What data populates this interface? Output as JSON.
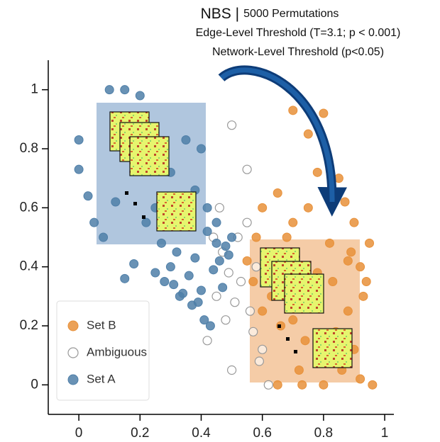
{
  "chart_data": {
    "type": "scatter",
    "title": "NBS |",
    "subtitle": "5000 Permutations",
    "annotations": [
      "Edge-Level Threshold (T=3.1; p < 0.001)",
      "Network-Level Threshold (p<0.05)"
    ],
    "xlim": [
      -0.1,
      1.03
    ],
    "ylim": [
      -0.1,
      1.1
    ],
    "xticks": [
      0,
      0.2,
      0.4,
      0.6,
      0.8,
      1
    ],
    "yticks": [
      0,
      0.2,
      0.4,
      0.6,
      0.8,
      1
    ],
    "legend": "lower left",
    "series": [
      {
        "name": "Set B",
        "color": "#e8913a",
        "fill": true,
        "x": [
          0.6,
          0.65,
          0.7,
          0.75,
          0.8,
          0.85,
          0.9,
          0.95,
          0.62,
          0.68,
          0.72,
          0.78,
          0.83,
          0.88,
          0.93,
          0.6,
          0.66,
          0.74,
          0.8,
          0.86,
          0.92,
          0.57,
          0.63,
          0.7,
          0.77,
          0.84,
          0.9,
          0.96,
          0.65,
          0.72,
          0.8,
          0.88,
          0.94,
          0.75,
          0.82,
          0.89,
          0.7,
          0.78,
          0.87,
          0.92,
          0.73,
          0.58,
          0.55
        ],
        "values": [
          0.6,
          0.65,
          0.93,
          0.85,
          0.92,
          0.7,
          0.55,
          0.48,
          0.45,
          0.5,
          0.4,
          0.38,
          0.35,
          0.42,
          0.3,
          0.25,
          0.2,
          0.15,
          0.1,
          0.05,
          0.02,
          0.35,
          0.3,
          0.22,
          0.28,
          0.18,
          0.12,
          0.0,
          0.0,
          0.05,
          0.0,
          0.25,
          0.35,
          0.6,
          0.48,
          0.45,
          0.55,
          0.72,
          0.62,
          0.4,
          0.0,
          0.5,
          0.42
        ]
      },
      {
        "name": "Ambiguous",
        "color": "#999999",
        "fill": false,
        "x": [
          0.5,
          0.55,
          0.45,
          0.48,
          0.52,
          0.58,
          0.42,
          0.47,
          0.53,
          0.56,
          0.6,
          0.5,
          0.44,
          0.62,
          0.55,
          0.49,
          0.57,
          0.51,
          0.46,
          0.59
        ],
        "values": [
          0.88,
          0.73,
          0.3,
          0.22,
          0.5,
          0.4,
          0.15,
          0.45,
          0.35,
          0.25,
          0.12,
          0.05,
          0.5,
          0.0,
          0.55,
          0.38,
          0.18,
          0.28,
          0.6,
          0.08
        ]
      },
      {
        "name": "Set A",
        "color": "#4f7fa8",
        "fill": true,
        "x": [
          0.0,
          0.0,
          0.03,
          0.1,
          0.12,
          0.15,
          0.2,
          0.22,
          0.25,
          0.3,
          0.35,
          0.38,
          0.4,
          0.42,
          0.45,
          0.35,
          0.3,
          0.25,
          0.18,
          0.15,
          0.28,
          0.32,
          0.38,
          0.42,
          0.45,
          0.48,
          0.5,
          0.4,
          0.36,
          0.33,
          0.44,
          0.47,
          0.39,
          0.41,
          0.43,
          0.37,
          0.34,
          0.31,
          0.46,
          0.49,
          0.05,
          0.08,
          0.27
        ],
        "values": [
          0.83,
          0.73,
          0.64,
          1.0,
          0.62,
          1.0,
          0.98,
          0.55,
          0.6,
          0.72,
          0.83,
          0.66,
          0.8,
          0.6,
          0.55,
          0.58,
          0.4,
          0.38,
          0.41,
          0.36,
          0.35,
          0.45,
          0.43,
          0.52,
          0.48,
          0.47,
          0.5,
          0.32,
          0.37,
          0.3,
          0.39,
          0.33,
          0.28,
          0.22,
          0.2,
          0.27,
          0.31,
          0.34,
          0.42,
          0.44,
          0.55,
          0.5,
          0.48
        ]
      }
    ]
  }
}
